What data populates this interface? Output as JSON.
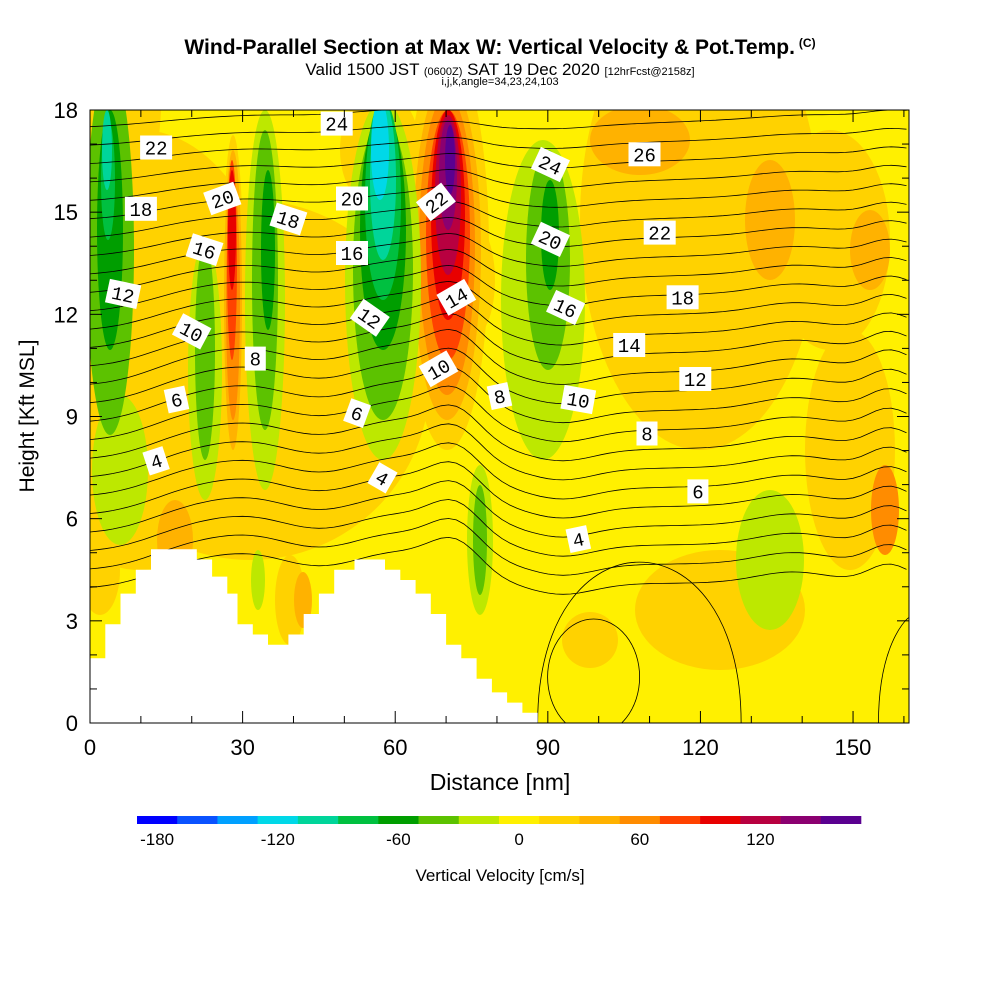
{
  "title": {
    "main": "Wind-Parallel Section at Max W: Vertical Velocity & Pot.Temp.",
    "copyright": "(C)",
    "valid_prefix": "Valid 1500 JST",
    "valid_utc": "(0600Z)",
    "valid_date": "SAT 19 Dec 2020",
    "forecast": "[12hrFcst@2158z]",
    "section_params": "i,j,k,angle=34,23,24,103"
  },
  "chart_data": {
    "type": "heatmap",
    "xlabel": "Distance [nm]",
    "ylabel": "Height [Kft MSL]",
    "xlim": [
      0,
      161
    ],
    "ylim": [
      0,
      18
    ],
    "x_ticks": [
      0,
      30,
      60,
      90,
      120,
      150
    ],
    "y_ticks": [
      0,
      3,
      6,
      9,
      12,
      15,
      18
    ],
    "colorbar": {
      "label": "Vertical Velocity [cm/s]",
      "tick_labels": [
        -180,
        -120,
        -60,
        0,
        60,
        120
      ],
      "levels": [
        -180,
        -160,
        -140,
        -120,
        -100,
        -80,
        -60,
        -40,
        -20,
        0,
        20,
        40,
        60,
        80,
        100,
        120,
        140
      ],
      "colors": [
        "#0000ff",
        "#0a52ff",
        "#00a0ff",
        "#00d8e8",
        "#00d59a",
        "#00c040",
        "#009e00",
        "#5cc200",
        "#bde800",
        "#fff000",
        "#ffd200",
        "#ffb200",
        "#ff8c00",
        "#ff4200",
        "#e80000",
        "#b80040",
        "#8b0070",
        "#5a0090"
      ]
    },
    "contour_labels": [
      {
        "text": "22",
        "x": 13,
        "y": 16.9,
        "angle": 0
      },
      {
        "text": "18",
        "x": 10,
        "y": 15.1,
        "angle": 0
      },
      {
        "text": "12",
        "x": 6.5,
        "y": 12.6,
        "angle": 12
      },
      {
        "text": "20",
        "x": 26,
        "y": 15.4,
        "angle": -20
      },
      {
        "text": "16",
        "x": 22.5,
        "y": 13.9,
        "angle": 18
      },
      {
        "text": "10",
        "x": 20,
        "y": 11.5,
        "angle": 28
      },
      {
        "text": "6",
        "x": 17,
        "y": 9.5,
        "angle": -12
      },
      {
        "text": "4",
        "x": 13,
        "y": 7.7,
        "angle": -18
      },
      {
        "text": "8",
        "x": 32.5,
        "y": 10.7,
        "angle": 0
      },
      {
        "text": "18",
        "x": 39,
        "y": 14.8,
        "angle": 18
      },
      {
        "text": "24",
        "x": 48.5,
        "y": 17.6,
        "angle": 0
      },
      {
        "text": "20",
        "x": 51.5,
        "y": 15.4,
        "angle": 0
      },
      {
        "text": "16",
        "x": 51.5,
        "y": 13.8,
        "angle": 0
      },
      {
        "text": "12",
        "x": 55,
        "y": 11.9,
        "angle": 35
      },
      {
        "text": "6",
        "x": 52.5,
        "y": 9.1,
        "angle": 20
      },
      {
        "text": "4",
        "x": 57.5,
        "y": 7.2,
        "angle": 30
      },
      {
        "text": "22",
        "x": 68,
        "y": 15.3,
        "angle": -38
      },
      {
        "text": "14",
        "x": 72,
        "y": 12.5,
        "angle": -30
      },
      {
        "text": "10",
        "x": 68.5,
        "y": 10.4,
        "angle": -30
      },
      {
        "text": "8",
        "x": 80.5,
        "y": 9.6,
        "angle": -12
      },
      {
        "text": "24",
        "x": 90.5,
        "y": 16.4,
        "angle": 25
      },
      {
        "text": "20",
        "x": 90.5,
        "y": 14.2,
        "angle": 25
      },
      {
        "text": "16",
        "x": 93.5,
        "y": 12.2,
        "angle": 25
      },
      {
        "text": "10",
        "x": 96,
        "y": 9.5,
        "angle": 10
      },
      {
        "text": "4",
        "x": 96,
        "y": 5.4,
        "angle": -12
      },
      {
        "text": "26",
        "x": 109,
        "y": 16.7,
        "angle": 0
      },
      {
        "text": "22",
        "x": 112,
        "y": 14.4,
        "angle": 0
      },
      {
        "text": "18",
        "x": 116.5,
        "y": 12.5,
        "angle": 0
      },
      {
        "text": "14",
        "x": 106,
        "y": 11.1,
        "angle": 0
      },
      {
        "text": "12",
        "x": 119,
        "y": 10.1,
        "angle": 0
      },
      {
        "text": "8",
        "x": 109.5,
        "y": 8.5,
        "angle": 0
      },
      {
        "text": "6",
        "x": 119.5,
        "y": 6.8,
        "angle": 0
      }
    ]
  }
}
